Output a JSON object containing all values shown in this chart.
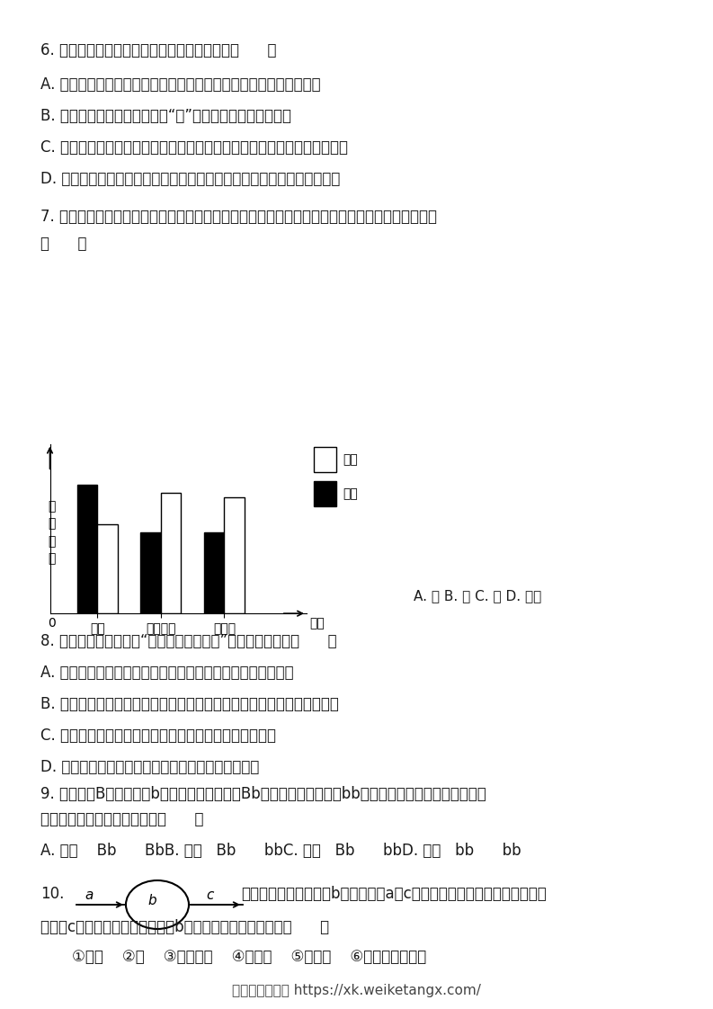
{
  "background_color": "#ffffff",
  "chart": {
    "ylabel": "相\n对\n含\n量",
    "xlabel": "物质",
    "categories": [
      "氧气",
      "二氧化碗",
      "葡萄糖"
    ],
    "dongmai_values": [
      0.55,
      0.75,
      0.72
    ],
    "jingmai_values": [
      0.8,
      0.5,
      0.5
    ],
    "dongmai_color": "white",
    "jingmai_color": "black",
    "legend_dongmai": "动脉",
    "legend_jingmai": "静脉"
  },
  "footer": "学科学霸资料站 https://xk.weiketangx.com/",
  "q6_title": "6. 下列对生活中的生物技术的叙述，正确的是（      ）",
  "q6_A": "A. 白酒和葡萄酒制作过程都要经过霉菌的糖化和酵母菌的发酵等阶段",
  "q6_B": "B. 制作白酒和葡萄酒等用到的“菌”和香菇一样都是营腐生活",
  "q6_C": "C. 在果蔬贮藏场所适当降低氧气浓度的主要目的是抑制微生物的生长与繁殖",
  "q6_D": "D. 制作酸奶过程的实质是乳酸菌在适宜条件下将奶中的蛋白质转化成乳酸",
  "q7_title": "7. 在某一时刻测定某一器官的动脉和静脉的血液内三种物质含量，其相对数值如图所示，该器官是",
  "q7_title2": "（      ）",
  "q7_options": "A. 肺 B. 脑 C. 肾 D. 小肠",
  "q8_title": "8. 下列叙述中，不符合“结构与功能相适应”生物学观点的是（      ）",
  "q8_A": "A. 肺泡壁和毛细血管壁都由一层上皮细胞构成，利于气体交换",
  "q8_B": "B. 根尖成熟区表皮细胞一部分向外突出形成根毛，利于吸收水分和无机盐",
  "q8_C": "C. 神经元有许多突起有利于接受刺激产生冲动并传导冲动",
  "q8_D": "D. 心脂中瓣膜的存在可以使动脉血和静脉血完全分开",
  "q9_title": "9. 毛桃基因B对滑桃基因b为显性，现将毛桃（Bb）的花粉授给滑桃（bb）的雌蕊柱头，该雌蕊所结果实",
  "q9_title2": "的性状和种子的基因型分别为（      ）",
  "q9_options": "A. 毛桃    Bb      BbB. 毛桃   Bb      bbC. 滑桃   Bb      bbD. 滑桃   bb      bb",
  "q10_num": "10.",
  "q10_text1": "如图是血液流经某器官b的示意图，a、c表示血管，筭头表示血液流动的方",
  "q10_text2": "向，若c血管内流动脉血，你认为b可能代表的器官和结构是（      ）",
  "q10_options": "①大脑    ②肺    ③小肠绒毛    ④肾小球    ⑤肾小管    ⑥左心房、左心室"
}
